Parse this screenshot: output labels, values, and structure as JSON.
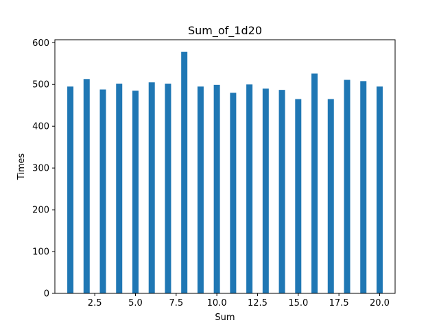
{
  "chart_data": {
    "type": "bar",
    "title": "Sum_of_1d20",
    "xlabel": "Sum",
    "ylabel": "Times",
    "x": [
      1,
      2,
      3,
      4,
      5,
      6,
      7,
      8,
      9,
      10,
      11,
      12,
      13,
      14,
      15,
      16,
      17,
      18,
      19,
      20
    ],
    "values": [
      495,
      513,
      488,
      502,
      485,
      505,
      502,
      578,
      495,
      499,
      480,
      500,
      490,
      487,
      465,
      526,
      465,
      511,
      508,
      495
    ],
    "xlim": [
      0.05,
      20.95
    ],
    "ylim": [
      0,
      607
    ],
    "xticks": [
      2.5,
      5.0,
      7.5,
      10.0,
      12.5,
      15.0,
      17.5,
      20.0
    ],
    "xtick_labels": [
      "2.5",
      "5.0",
      "7.5",
      "10.0",
      "12.5",
      "15.0",
      "17.5",
      "20.0"
    ],
    "yticks": [
      0,
      100,
      200,
      300,
      400,
      500,
      600
    ],
    "ytick_labels": [
      "0",
      "100",
      "200",
      "300",
      "400",
      "500",
      "600"
    ],
    "bar_color": "#1f77b4",
    "grid": false,
    "legend": "none"
  }
}
